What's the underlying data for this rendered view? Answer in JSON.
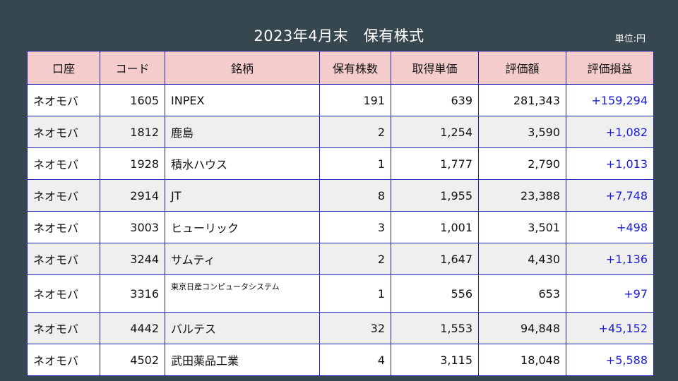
{
  "title": "2023年4月末　保有株式",
  "unit_label": "単位:円",
  "colors": {
    "header_bg": "#f4cccc",
    "border": "#2020b0",
    "profit_text": "#1a1ad6",
    "page_bg": "#37474f"
  },
  "columns": [
    "口座",
    "コード",
    "銘柄",
    "保有株数",
    "取得単価",
    "評価額",
    "評価損益"
  ],
  "rows": [
    {
      "account": "ネオモバ",
      "code": "1605",
      "name": "INPEX",
      "shares": "191",
      "cost": "639",
      "value": "281,343",
      "pl": "+159,294"
    },
    {
      "account": "ネオモバ",
      "code": "1812",
      "name": "鹿島",
      "shares": "2",
      "cost": "1,254",
      "value": "3,590",
      "pl": "+1,082"
    },
    {
      "account": "ネオモバ",
      "code": "1928",
      "name": "積水ハウス",
      "shares": "1",
      "cost": "1,777",
      "value": "2,790",
      "pl": "+1,013"
    },
    {
      "account": "ネオモバ",
      "code": "2914",
      "name": "JT",
      "shares": "8",
      "cost": "1,955",
      "value": "23,388",
      "pl": "+7,748"
    },
    {
      "account": "ネオモバ",
      "code": "3003",
      "name": "ヒューリック",
      "shares": "3",
      "cost": "1,001",
      "value": "3,501",
      "pl": "+498"
    },
    {
      "account": "ネオモバ",
      "code": "3244",
      "name": "サムティ",
      "shares": "2",
      "cost": "1,647",
      "value": "4,430",
      "pl": "+1,136"
    },
    {
      "account": "ネオモバ",
      "code": "3316",
      "name": "東京日産コンピュータシステム",
      "shares": "1",
      "cost": "556",
      "value": "653",
      "pl": "+97"
    },
    {
      "account": "ネオモバ",
      "code": "4442",
      "name": "バルテス",
      "shares": "32",
      "cost": "1,553",
      "value": "94,848",
      "pl": "+45,152"
    },
    {
      "account": "ネオモバ",
      "code": "4502",
      "name": "武田薬品工業",
      "shares": "4",
      "cost": "3,115",
      "value": "18,048",
      "pl": "+5,588"
    }
  ]
}
